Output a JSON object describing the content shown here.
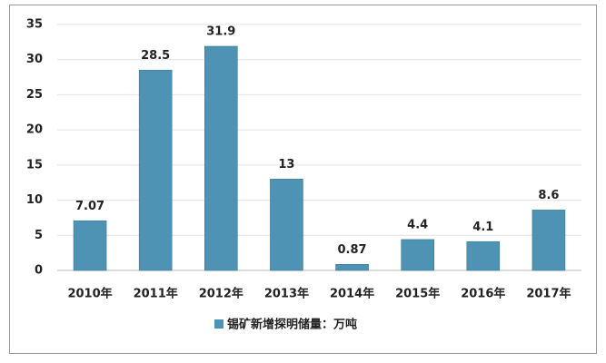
{
  "chart_data": {
    "type": "bar",
    "categories": [
      "2010年",
      "2011年",
      "2012年",
      "2013年",
      "2014年",
      "2015年",
      "2016年",
      "2017年"
    ],
    "series": [
      {
        "name": "锡矿新增探明储量：万吨",
        "color": "#4f93b4",
        "values": [
          7.07,
          28.5,
          31.9,
          13,
          0.87,
          4.4,
          4.1,
          8.6
        ]
      }
    ],
    "ylim": [
      0,
      35
    ],
    "yticks": [
      0,
      5,
      10,
      15,
      20,
      25,
      30,
      35
    ],
    "grid": true,
    "legend": "bottom"
  }
}
